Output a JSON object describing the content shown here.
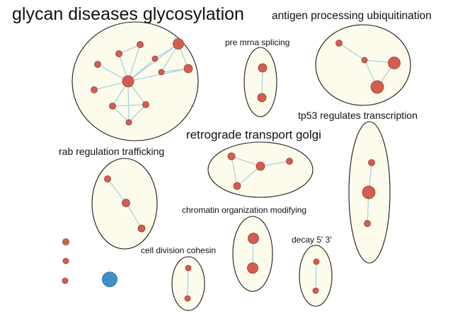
{
  "clusters": [
    {
      "id": "glycan",
      "label": "glycan diseases glycosylation"
    },
    {
      "id": "antigen",
      "label": "antigen processing ubiquitination"
    },
    {
      "id": "premrna",
      "label": "pre mrna splicing"
    },
    {
      "id": "tp53",
      "label": "tp53 regulates transcription"
    },
    {
      "id": "retrograde",
      "label": "retrograde transport golgi"
    },
    {
      "id": "rab",
      "label": "rab regulation trafficking"
    },
    {
      "id": "chromatin",
      "label": "chromatin organization modifying"
    },
    {
      "id": "decay",
      "label": "decay 5' 3'"
    },
    {
      "id": "celldiv",
      "label": "cell division cohesin"
    }
  ],
  "colors": {
    "cluster_fill": "#fdfcec",
    "cluster_stroke": "#1a1a1a",
    "edge": "#a9d2e6",
    "node": "#d45d50",
    "node_highlight": "#3f8ec6"
  }
}
